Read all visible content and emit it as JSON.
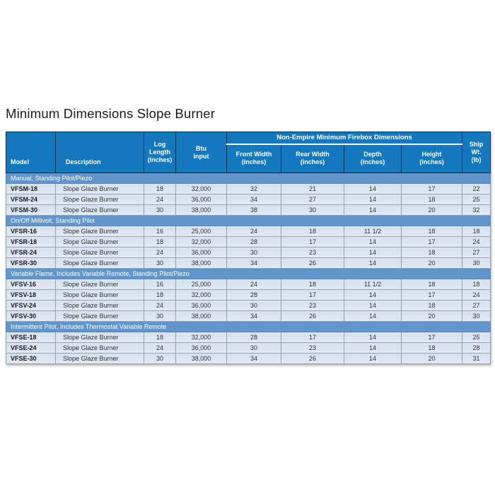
{
  "page": {
    "title": "Minimum Dimensions Slope Burner"
  },
  "colors": {
    "header_bg": "#1478BF",
    "header_text": "#FFFFFF",
    "header_grid": "#0E2F52",
    "group_underline": "#FFFFFF",
    "section_bg": "#6096CC",
    "row_bg": "#DBE6F2",
    "grid_line": "#98A0A8",
    "background": "#FFFFFF"
  },
  "table": {
    "header": {
      "model": "Model",
      "description": "Description",
      "log_length": "Log\nLength\n(inches)",
      "btu_input": "Btu\nInput",
      "firebox_group": "Non-Empire Minimum Firebox Dimensions",
      "front_width": "Front Width\n(inches)",
      "rear_width": "Rear Width\n(inches)",
      "depth": "Depth\n(inches)",
      "height": "Height\n(inches)",
      "ship_wt": "Ship\nWt.\n(lb)"
    },
    "sections": [
      {
        "title": "Manual, Standing Pilot/Piezo",
        "rows": [
          [
            "VFSM-18",
            "Slope Glaze Burner",
            "18",
            "32,000",
            "32",
            "21",
            "14",
            "17",
            "22"
          ],
          [
            "VFSM-24",
            "Slope Glaze Burner",
            "24",
            "36,000",
            "34",
            "27",
            "14",
            "18",
            "25"
          ],
          [
            "VFSM-30",
            "Slope Glaze Burner",
            "30",
            "38,000",
            "38",
            "30",
            "14",
            "20",
            "32"
          ]
        ]
      },
      {
        "title": "On/Off Millivolt, Standing Pilot",
        "rows": [
          [
            "VFSR-16",
            "Slope Glaze Burner",
            "16",
            "25,000",
            "24",
            "18",
            "11 1/2",
            "18",
            "18"
          ],
          [
            "VFSR-18",
            "Slope Glaze Burner",
            "18",
            "32,000",
            "28",
            "17",
            "14",
            "17",
            "24"
          ],
          [
            "VFSR-24",
            "Slope Glaze Burner",
            "24",
            "36,000",
            "30",
            "23",
            "14",
            "18",
            "27"
          ],
          [
            "VFSR-30",
            "Slope Glaze Burner",
            "30",
            "38,000",
            "34",
            "26",
            "14",
            "20",
            "30"
          ]
        ]
      },
      {
        "title": "Variable Flame, Includes Variable Remote, Standing Pilot/Piezo",
        "rows": [
          [
            "VFSV-16",
            "Slope Glaze Burner",
            "16",
            "25,000",
            "24",
            "18",
            "11 1/2",
            "18",
            "18"
          ],
          [
            "VFSV-18",
            "Slope Glaze Burner",
            "18",
            "32,000",
            "28",
            "17",
            "14",
            "17",
            "24"
          ],
          [
            "VFSV-24",
            "Slope Glaze Burner",
            "24",
            "36,000",
            "30",
            "23",
            "14",
            "18",
            "27"
          ],
          [
            "VFSV-30",
            "Slope Glaze Burner",
            "30",
            "38,000",
            "34",
            "26",
            "14",
            "20",
            "30"
          ]
        ]
      },
      {
        "title": "Intermittent Pilot, Includes Thermostat Variable Remote",
        "rows": [
          [
            "VFSE-18",
            "Slope Glaze Burner",
            "18",
            "32,000",
            "28",
            "17",
            "14",
            "17",
            "25"
          ],
          [
            "VFSE-24",
            "Slope Glaze Burner",
            "24",
            "36,000",
            "30",
            "23",
            "14",
            "18",
            "28"
          ],
          [
            "VFSE-30",
            "Slope Glaze Burner",
            "30",
            "38,000",
            "34",
            "26",
            "14",
            "20",
            "31"
          ]
        ]
      }
    ]
  }
}
